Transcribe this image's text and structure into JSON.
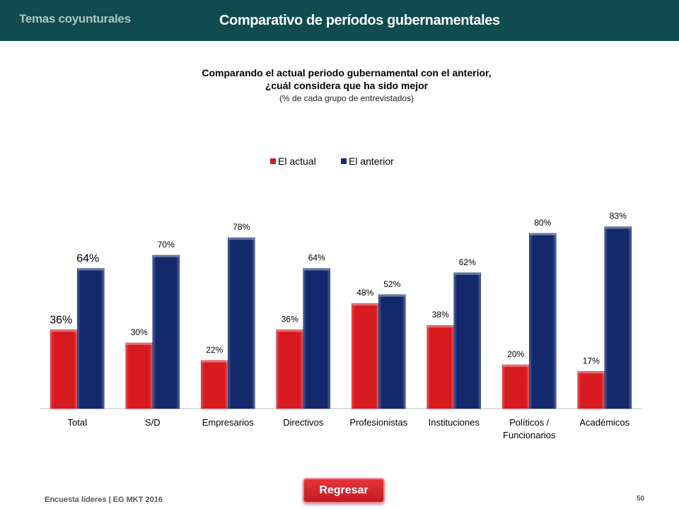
{
  "header": {
    "section": "Temas coyunturales",
    "title": "Comparativo de períodos gubernamentales"
  },
  "question": {
    "line1": "Comparando el actual periodo gubernamental con el anterior,",
    "line2": "¿cuál considera que ha sido mejor",
    "line3": "(% de cada grupo de entrevistados)"
  },
  "footer": {
    "source": "Encuesta líderes | EG MKT 2016",
    "page": "50",
    "back_button": "Regresar"
  },
  "colors": {
    "header_bg": "#0f4b4f",
    "actual": "#d71920",
    "anterior": "#13296b",
    "button": "#d7232a"
  },
  "chart_data": {
    "type": "bar",
    "categories": [
      "Total",
      "S/D",
      "Empresarios",
      "Directivos",
      "Profesionistas",
      "Instituciones",
      "Políticos / Funcionarios",
      "Académicos"
    ],
    "series": [
      {
        "name": "El actual",
        "color": "#d71920",
        "values": [
          36,
          30,
          22,
          36,
          48,
          38,
          20,
          17
        ],
        "labels": [
          "36%",
          "30%",
          "22%",
          "36%",
          "48%",
          "38%",
          "20%",
          "17%"
        ]
      },
      {
        "name": "El anterior",
        "color": "#13296b",
        "values": [
          64,
          70,
          78,
          64,
          52,
          62,
          80,
          83
        ],
        "labels": [
          "64%",
          "70%",
          "78%",
          "64%",
          "52%",
          "62%",
          "80%",
          "83%"
        ]
      }
    ],
    "ylim": [
      0,
      100
    ],
    "legend": "top-center",
    "grid": false
  }
}
